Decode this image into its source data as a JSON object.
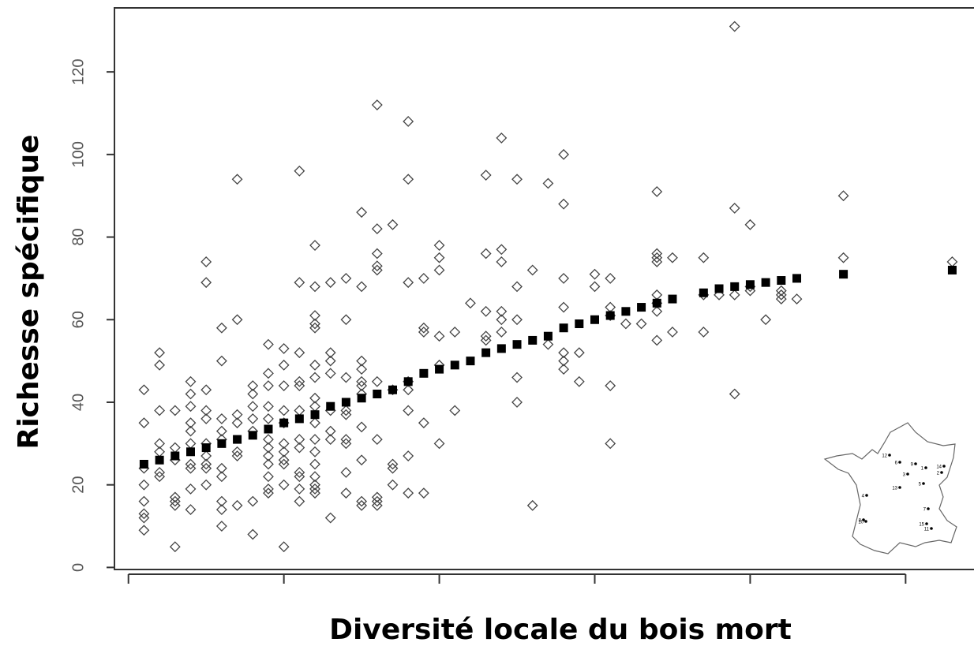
{
  "chart_data": {
    "type": "scatter",
    "x_label": "Diversité locale du bois mort",
    "y_label": "Richesse spécifique",
    "xlim": [
      -0.09,
      5.44
    ],
    "xticks": [
      0,
      1,
      2,
      3,
      4,
      5
    ],
    "ylim": [
      -0.5,
      135.5
    ],
    "yticks": [
      0,
      20,
      40,
      60,
      80,
      100,
      120
    ],
    "series": [
      {
        "marker": "diamond",
        "color": "#444444",
        "x": [
          0.1,
          0.1,
          0.1,
          0.1,
          0.1,
          0.1,
          0.1,
          0.1,
          0.2,
          0.2,
          0.2,
          0.2,
          0.2,
          0.2,
          0.2,
          0.3,
          0.3,
          0.3,
          0.3,
          0.3,
          0.3,
          0.3,
          0.4,
          0.4,
          0.4,
          0.4,
          0.4,
          0.4,
          0.4,
          0.4,
          0.4,
          0.4,
          0.5,
          0.5,
          0.5,
          0.5,
          0.5,
          0.5,
          0.5,
          0.5,
          0.5,
          0.5,
          0.6,
          0.6,
          0.6,
          0.6,
          0.6,
          0.6,
          0.6,
          0.6,
          0.6,
          0.6,
          0.7,
          0.7,
          0.7,
          0.7,
          0.7,
          0.7,
          0.7,
          0.8,
          0.8,
          0.8,
          0.8,
          0.8,
          0.8,
          0.8,
          0.9,
          0.9,
          0.9,
          0.9,
          0.9,
          0.9,
          0.9,
          0.9,
          0.9,
          0.9,
          0.9,
          0.9,
          1.0,
          1.0,
          1.0,
          1.0,
          1.0,
          1.0,
          1.0,
          1.0,
          1.0,
          1.0,
          1.0,
          1.1,
          1.1,
          1.1,
          1.1,
          1.1,
          1.1,
          1.1,
          1.1,
          1.1,
          1.1,
          1.1,
          1.1,
          1.2,
          1.2,
          1.2,
          1.2,
          1.2,
          1.2,
          1.2,
          1.2,
          1.2,
          1.2,
          1.2,
          1.2,
          1.2,
          1.2,
          1.2,
          1.2,
          1.2,
          1.3,
          1.3,
          1.3,
          1.3,
          1.3,
          1.3,
          1.3,
          1.3,
          1.4,
          1.4,
          1.4,
          1.4,
          1.4,
          1.4,
          1.4,
          1.4,
          1.4,
          1.5,
          1.5,
          1.5,
          1.5,
          1.5,
          1.5,
          1.5,
          1.5,
          1.5,
          1.5,
          1.5,
          1.6,
          1.6,
          1.6,
          1.6,
          1.6,
          1.6,
          1.6,
          1.6,
          1.6,
          1.6,
          1.7,
          1.7,
          1.7,
          1.7,
          1.7,
          1.8,
          1.8,
          1.8,
          1.8,
          1.8,
          1.8,
          1.8,
          1.8,
          1.9,
          1.9,
          1.9,
          1.9,
          1.9,
          2.0,
          2.0,
          2.0,
          2.0,
          2.0,
          2.0,
          2.1,
          2.1,
          2.2,
          2.3,
          2.3,
          2.3,
          2.3,
          2.3,
          2.4,
          2.4,
          2.4,
          2.4,
          2.4,
          2.4,
          2.5,
          2.5,
          2.5,
          2.5,
          2.5,
          2.6,
          2.6,
          2.7,
          2.7,
          2.8,
          2.8,
          2.8,
          2.8,
          2.8,
          2.8,
          2.8,
          2.9,
          2.9,
          3.0,
          3.0,
          3.1,
          3.1,
          3.1,
          3.1,
          3.1,
          3.2,
          3.3,
          3.4,
          3.4,
          3.4,
          3.4,
          3.4,
          3.4,
          3.4,
          3.4,
          3.5,
          3.5,
          3.7,
          3.7,
          3.7,
          3.8,
          3.9,
          3.9,
          3.9,
          3.9,
          4.0,
          4.0,
          4.0,
          4.1,
          4.2,
          4.2,
          4.2,
          4.3,
          4.6,
          4.6,
          5.3
        ],
        "values": [
          43,
          35,
          24,
          20,
          16,
          13,
          12,
          9,
          52,
          49,
          38,
          30,
          28,
          23,
          22,
          38,
          29,
          26,
          17,
          16,
          15,
          5,
          45,
          42,
          39,
          35,
          33,
          30,
          25,
          24,
          19,
          14,
          74,
          69,
          43,
          38,
          36,
          30,
          27,
          25,
          24,
          20,
          58,
          50,
          36,
          33,
          31,
          24,
          22,
          16,
          14,
          10,
          94,
          60,
          37,
          35,
          28,
          27,
          15,
          44,
          42,
          39,
          36,
          33,
          16,
          8,
          54,
          47,
          44,
          39,
          36,
          31,
          29,
          27,
          25,
          22,
          19,
          18,
          53,
          49,
          44,
          38,
          35,
          30,
          28,
          26,
          25,
          20,
          5,
          96,
          69,
          52,
          45,
          44,
          38,
          31,
          29,
          23,
          22,
          19,
          16,
          78,
          68,
          61,
          59,
          58,
          49,
          46,
          41,
          39,
          35,
          31,
          28,
          25,
          22,
          20,
          19,
          18,
          69,
          52,
          50,
          47,
          38,
          33,
          31,
          12,
          70,
          60,
          46,
          38,
          37,
          31,
          30,
          23,
          18,
          86,
          68,
          50,
          48,
          45,
          44,
          42,
          34,
          26,
          16,
          15,
          112,
          82,
          76,
          73,
          72,
          45,
          31,
          17,
          16,
          15,
          83,
          43,
          25,
          24,
          20,
          108,
          94,
          69,
          45,
          43,
          38,
          27,
          18,
          70,
          58,
          57,
          35,
          18,
          78,
          75,
          72,
          56,
          49,
          30,
          57,
          38,
          64,
          95,
          76,
          62,
          56,
          55,
          104,
          77,
          74,
          62,
          60,
          57,
          94,
          68,
          60,
          46,
          40,
          72,
          15,
          93,
          54,
          100,
          88,
          70,
          63,
          52,
          50,
          48,
          52,
          45,
          71,
          68,
          70,
          63,
          61,
          44,
          30,
          59,
          59,
          91,
          76,
          75,
          74,
          66,
          64,
          62,
          55,
          75,
          57,
          75,
          66,
          57,
          66,
          131,
          87,
          66,
          42,
          83,
          68,
          67,
          60,
          67,
          66,
          65,
          65,
          90,
          75,
          74
        ]
      },
      {
        "marker": "square",
        "color": "#000000",
        "x": [
          0.1,
          0.2,
          0.3,
          0.4,
          0.5,
          0.6,
          0.7,
          0.8,
          0.9,
          1.0,
          1.1,
          1.2,
          1.3,
          1.4,
          1.5,
          1.6,
          1.7,
          1.8,
          1.9,
          2.0,
          2.1,
          2.2,
          2.3,
          2.4,
          2.5,
          2.6,
          2.7,
          2.8,
          2.9,
          3.0,
          3.1,
          3.2,
          3.3,
          3.4,
          3.5,
          3.7,
          3.8,
          3.9,
          4.0,
          4.1,
          4.2,
          4.3,
          4.6,
          5.3
        ],
        "values": [
          25,
          26,
          27,
          28,
          29,
          30,
          31,
          32,
          33.5,
          35,
          36,
          37,
          39,
          40,
          41,
          42,
          43,
          45,
          47,
          48,
          49,
          50,
          52,
          53,
          54,
          55,
          56,
          58,
          59,
          60,
          61,
          62,
          63,
          64,
          65,
          66.5,
          67.5,
          68,
          68.5,
          69,
          69.5,
          70,
          71,
          72
        ]
      }
    ],
    "inset_map": {
      "labels": [
        "12",
        "6",
        "9",
        "1",
        "14",
        "2",
        "3",
        "5",
        "13",
        "4",
        "7",
        "8",
        "10",
        "15",
        "11"
      ]
    }
  }
}
